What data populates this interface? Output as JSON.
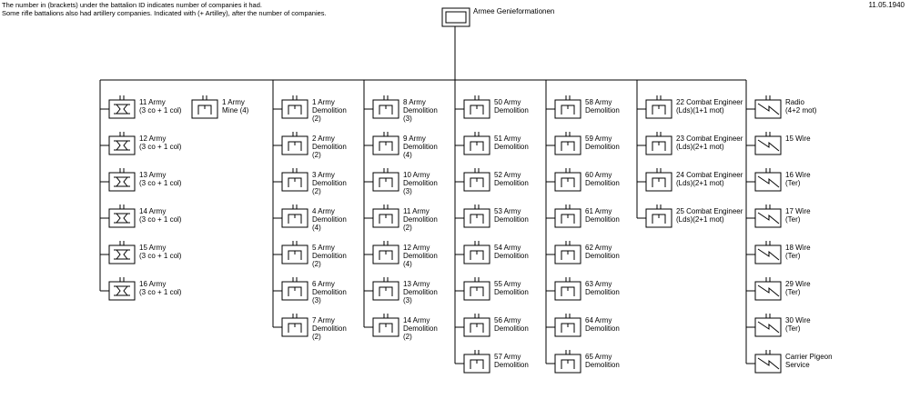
{
  "notes": [
    "The number in (brackets) under the battalion ID indicates number of companies it had.",
    "Some rifle battalions also had artillery companies. Indicated with (+ Artilley), after the number of companies."
  ],
  "date": "11.05.1940",
  "root": "Armee Genieformationen",
  "extra": {
    "lines": [
      "1 Army",
      "Mine (4)"
    ],
    "symbol": "engineer"
  },
  "columns": [
    {
      "units": [
        {
          "lines": [
            "11 Army",
            "(3 co + 1 col)"
          ],
          "symbol": "bridge"
        },
        {
          "lines": [
            "12 Army",
            "(3 co + 1 col)"
          ],
          "symbol": "bridge"
        },
        {
          "lines": [
            "13 Army",
            "(3 co + 1 col)"
          ],
          "symbol": "bridge"
        },
        {
          "lines": [
            "14 Army",
            "(3 co + 1 col)"
          ],
          "symbol": "bridge"
        },
        {
          "lines": [
            "15 Army",
            "(3 co + 1 col)"
          ],
          "symbol": "bridge"
        },
        {
          "lines": [
            "16 Army",
            "(3 co + 1 col)"
          ],
          "symbol": "bridge"
        }
      ]
    },
    {
      "units": [
        {
          "lines": [
            "1 Army",
            "Demolition",
            "(2)"
          ],
          "symbol": "engineer"
        },
        {
          "lines": [
            "2 Army",
            "Demolition",
            "(2)"
          ],
          "symbol": "engineer"
        },
        {
          "lines": [
            "3 Army",
            "Demolition",
            "(2)"
          ],
          "symbol": "engineer"
        },
        {
          "lines": [
            "4 Army",
            "Demolition",
            "(4)"
          ],
          "symbol": "engineer"
        },
        {
          "lines": [
            "5 Army",
            "Demolition",
            "(2)"
          ],
          "symbol": "engineer"
        },
        {
          "lines": [
            "6 Army",
            "Demolition",
            "(3)"
          ],
          "symbol": "engineer"
        },
        {
          "lines": [
            "7 Army",
            "Demolition",
            "(2)"
          ],
          "symbol": "engineer"
        }
      ]
    },
    {
      "units": [
        {
          "lines": [
            "8 Army",
            "Demolition",
            "(3)"
          ],
          "symbol": "engineer"
        },
        {
          "lines": [
            "9 Army",
            "Demolition",
            "(4)"
          ],
          "symbol": "engineer"
        },
        {
          "lines": [
            "10 Army",
            "Demolition",
            "(3)"
          ],
          "symbol": "engineer"
        },
        {
          "lines": [
            "11 Army",
            "Demolition",
            "(2)"
          ],
          "symbol": "engineer"
        },
        {
          "lines": [
            "12 Army",
            "Demolition",
            "(4)"
          ],
          "symbol": "engineer"
        },
        {
          "lines": [
            "13 Army",
            "Demolition",
            "(3)"
          ],
          "symbol": "engineer"
        },
        {
          "lines": [
            "14 Army",
            "Demolition",
            "(2)"
          ],
          "symbol": "engineer"
        }
      ]
    },
    {
      "units": [
        {
          "lines": [
            "50 Army",
            "Demolition"
          ],
          "symbol": "engineer"
        },
        {
          "lines": [
            "51 Army",
            "Demolition"
          ],
          "symbol": "engineer"
        },
        {
          "lines": [
            "52 Army",
            "Demolition"
          ],
          "symbol": "engineer"
        },
        {
          "lines": [
            "53 Army",
            "Demolition"
          ],
          "symbol": "engineer"
        },
        {
          "lines": [
            "54 Army",
            "Demolition"
          ],
          "symbol": "engineer"
        },
        {
          "lines": [
            "55 Army",
            "Demolition"
          ],
          "symbol": "engineer"
        },
        {
          "lines": [
            "56 Army",
            "Demolition"
          ],
          "symbol": "engineer"
        },
        {
          "lines": [
            "57 Army",
            "Demolition"
          ],
          "symbol": "engineer"
        }
      ]
    },
    {
      "units": [
        {
          "lines": [
            "58 Army",
            "Demolition"
          ],
          "symbol": "engineer"
        },
        {
          "lines": [
            "59 Army",
            "Demolition"
          ],
          "symbol": "engineer"
        },
        {
          "lines": [
            "60 Army",
            "Demolition"
          ],
          "symbol": "engineer"
        },
        {
          "lines": [
            "61 Army",
            "Demolition"
          ],
          "symbol": "engineer"
        },
        {
          "lines": [
            "62 Army",
            "Demolition"
          ],
          "symbol": "engineer"
        },
        {
          "lines": [
            "63 Army",
            "Demolition"
          ],
          "symbol": "engineer"
        },
        {
          "lines": [
            "64 Army",
            "Demolition"
          ],
          "symbol": "engineer"
        },
        {
          "lines": [
            "65 Army",
            "Demolition"
          ],
          "symbol": "engineer"
        }
      ]
    },
    {
      "units": [
        {
          "lines": [
            "22 Combat Engineer",
            "(Lds)(1+1 mot)"
          ],
          "symbol": "engineer"
        },
        {
          "lines": [
            "23 Combat Engineer",
            "(Lds)(2+1 mot)"
          ],
          "symbol": "engineer"
        },
        {
          "lines": [
            "24 Combat Engineer",
            "(Lds)(2+1 mot)"
          ],
          "symbol": "engineer"
        },
        {
          "lines": [
            "25 Combat Engineer",
            "(Lds)(2+1 mot)"
          ],
          "symbol": "engineer"
        }
      ]
    },
    {
      "units": [
        {
          "lines": [
            "Radio",
            "(4+2 mot)"
          ],
          "symbol": "signal"
        },
        {
          "lines": [
            "15 Wire"
          ],
          "symbol": "signal"
        },
        {
          "lines": [
            "16 Wire",
            "(Ter)"
          ],
          "symbol": "signal"
        },
        {
          "lines": [
            "17 Wire",
            "(Ter)"
          ],
          "symbol": "signal"
        },
        {
          "lines": [
            "18 Wire",
            "(Ter)"
          ],
          "symbol": "signal"
        },
        {
          "lines": [
            "29 Wire",
            "(Ter)"
          ],
          "symbol": "signal"
        },
        {
          "lines": [
            "30 Wire",
            "(Ter)"
          ],
          "symbol": "signal"
        },
        {
          "lines": [
            "Carrier Pigeon",
            "Service"
          ],
          "symbol": "signal"
        }
      ]
    }
  ]
}
